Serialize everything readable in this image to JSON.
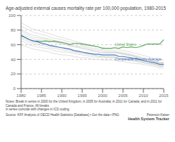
{
  "chart_data": {
    "type": "line",
    "title": "Age-adjusted external causes mortality rate per 100,000 population, 1980-2015",
    "x": [
      1980,
      1981,
      1982,
      1983,
      1984,
      1985,
      1986,
      1987,
      1988,
      1989,
      1990,
      1991,
      1992,
      1993,
      1994,
      1995,
      1996,
      1997,
      1998,
      1999,
      2000,
      2001,
      2002,
      2003,
      2004,
      2005,
      2006,
      2007,
      2008,
      2009,
      2010,
      2011,
      2012,
      2013,
      2014,
      2015
    ],
    "xlim": [
      1980,
      2015
    ],
    "xticks": [
      1980,
      1985,
      1990,
      1995,
      2000,
      2005,
      2010,
      2015
    ],
    "ylim": [
      0,
      100
    ],
    "yticks": [
      0,
      20,
      40,
      60,
      80,
      100
    ],
    "grid": true,
    "series": [
      {
        "color": "#c8c8c8",
        "values": [
          75,
          73,
          70,
          68,
          67,
          66,
          66,
          65,
          63,
          62,
          61,
          60,
          58,
          57,
          56,
          55,
          54,
          52,
          51,
          50,
          49,
          49,
          49,
          49,
          48,
          47,
          46,
          45,
          43,
          41,
          39,
          38,
          37,
          36,
          34,
          34
        ]
      },
      {
        "color": "#c8c8c8",
        "values": [
          68,
          66,
          63,
          61,
          60,
          59,
          58,
          56,
          55,
          54,
          53,
          52,
          51,
          50,
          49,
          48,
          47,
          46,
          45,
          44,
          44,
          43,
          43,
          43,
          41,
          41,
          40,
          39,
          38,
          37,
          36,
          35,
          34,
          33,
          31,
          31
        ]
      },
      {
        "color": "#c8c8c8",
        "values": [
          78,
          76,
          73,
          70,
          70,
          68,
          68,
          66,
          64,
          63,
          62,
          61,
          59,
          58,
          57,
          55,
          54,
          53,
          51,
          50,
          49,
          49,
          49,
          50,
          48,
          47,
          46,
          45,
          44,
          42,
          40,
          39,
          38,
          37,
          35,
          35
        ]
      },
      {
        "color": "#c8c8c8",
        "values": [
          80,
          78,
          75,
          73,
          72,
          70,
          69,
          68,
          66,
          65,
          64,
          62,
          61,
          60,
          58,
          57,
          56,
          54,
          53,
          52,
          51,
          50,
          50,
          50,
          49,
          48,
          47,
          46,
          44,
          43,
          41,
          40,
          38,
          37,
          35,
          35
        ]
      },
      {
        "color": "#c8c8c8",
        "values": [
          65,
          63,
          60,
          58,
          57,
          56,
          55,
          54,
          52,
          51,
          50,
          50,
          49,
          48,
          47,
          46,
          45,
          44,
          43,
          43,
          42,
          42,
          42,
          42,
          40,
          40,
          39,
          38,
          37,
          36,
          35,
          34,
          33,
          32,
          30,
          30
        ]
      },
      {
        "color": "#c8c8c8",
        "values": [
          70,
          68,
          65,
          63,
          62,
          61,
          60,
          58,
          57,
          56,
          55,
          54,
          53,
          51,
          50,
          49,
          48,
          47,
          46,
          45,
          44,
          44,
          44,
          44,
          42,
          42,
          41,
          40,
          39,
          38,
          36,
          35,
          34,
          33,
          31,
          31
        ]
      },
      {
        "color": "#c8c8c8",
        "values": [
          85,
          83,
          80,
          77,
          76,
          74,
          73,
          71,
          69,
          68,
          67,
          65,
          64,
          62,
          61,
          59,
          58,
          56,
          55,
          54,
          53,
          52,
          52,
          52,
          50,
          49,
          48,
          47,
          45,
          44,
          42,
          41,
          39,
          38,
          36,
          36
        ]
      },
      {
        "color": "#c8c8c8",
        "values": [
          60,
          58,
          56,
          54,
          53,
          52,
          51,
          50,
          48,
          47,
          46,
          46,
          45,
          44,
          43,
          42,
          42,
          41,
          40,
          40,
          39,
          39,
          39,
          39,
          37,
          37,
          36,
          35,
          34,
          34,
          33,
          32,
          31,
          30,
          28,
          28
        ]
      },
      {
        "color": "#c8c8c8",
        "values": [
          90,
          87,
          84,
          81,
          80,
          78,
          77,
          75,
          73,
          71,
          70,
          68,
          67,
          65,
          64,
          62,
          61,
          59,
          58,
          57,
          56,
          55,
          55,
          55,
          53,
          52,
          51,
          50,
          48,
          47,
          45,
          44,
          42,
          41,
          39,
          39
        ]
      },
      {
        "color": "#5ba85a",
        "values": [
          72,
          70,
          67,
          65,
          65,
          64,
          65,
          64,
          65,
          64,
          63,
          62,
          60,
          62,
          62,
          61,
          60,
          59,
          58,
          57,
          55,
          55,
          55,
          56,
          55,
          57,
          56,
          57,
          56,
          57,
          59,
          61,
          61,
          61,
          61,
          67
        ]
      },
      {
        "color": "#4a7bbf",
        "values": [
          73,
          70,
          67,
          65,
          64,
          62,
          61,
          59,
          58,
          57,
          56,
          55,
          54,
          52,
          51,
          50,
          49,
          48,
          47,
          47,
          46,
          46,
          46,
          46,
          44,
          44,
          43,
          42,
          41,
          40,
          38,
          37,
          36,
          35,
          33,
          33
        ]
      }
    ],
    "annotations": [
      {
        "text": "United States",
        "x": 2003,
        "y": 57.5,
        "color": "#5ba85a",
        "position": "above"
      },
      {
        "text": "Comparable Country Average",
        "x": 2003,
        "y": 43.5,
        "color": "#4a7bbf",
        "position": "below"
      }
    ],
    "notes": [
      "Notes: Break in series in 2000 for the United Kingdom; in 2005 for Australia; in 2011 for Canada; and in 2011 for Canada and France. All breaks",
      "in series coincide with changes in ICD coding."
    ],
    "source": "Source: KFF Analysis of OECD Health Statistics [Database] • Get the data • PNG",
    "brand": [
      "Peterson-Kaiser",
      "Health System Tracker"
    ]
  }
}
